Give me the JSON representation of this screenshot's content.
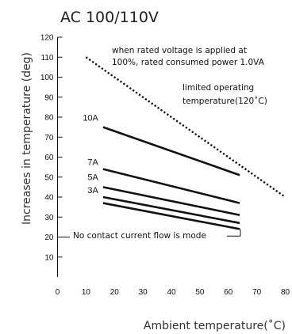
{
  "chart_data": {
    "type": "line",
    "title": "AC 100/110V",
    "xlabel": "Ambient temperature(˚C)",
    "ylabel": "Increases in temperature (deg)",
    "xlim": [
      0,
      80
    ],
    "ylim": [
      0,
      120
    ],
    "xticks": [
      0,
      10,
      20,
      30,
      40,
      50,
      60,
      70,
      80
    ],
    "yticks": [
      10,
      20,
      30,
      40,
      50,
      60,
      70,
      80,
      90,
      100,
      110,
      120
    ],
    "grid": false,
    "series": [
      {
        "name": "10A",
        "x": [
          16,
          64
        ],
        "y": [
          75,
          51
        ]
      },
      {
        "name": "7A",
        "x": [
          16,
          64
        ],
        "y": [
          54,
          37
        ]
      },
      {
        "name": "5A",
        "x": [
          16,
          64
        ],
        "y": [
          45,
          31
        ]
      },
      {
        "name": "3A",
        "x": [
          16,
          64
        ],
        "y": [
          40,
          27
        ]
      },
      {
        "name": "",
        "x": [
          16,
          64
        ],
        "y": [
          37,
          24
        ]
      }
    ],
    "limit_line": {
      "x": [
        10,
        80
      ],
      "y": [
        110,
        40
      ],
      "style": "dotted"
    },
    "annotations": [
      {
        "id": "rated",
        "lines": [
          "when rated voltage is applied at",
          "100%, rated consumed power 1.0VA"
        ]
      },
      {
        "id": "limit",
        "lines": [
          "limited operating",
          "temperature(120˚C)"
        ]
      },
      {
        "id": "nocontact",
        "lines": [
          "No contact current flow is mode"
        ]
      }
    ]
  }
}
